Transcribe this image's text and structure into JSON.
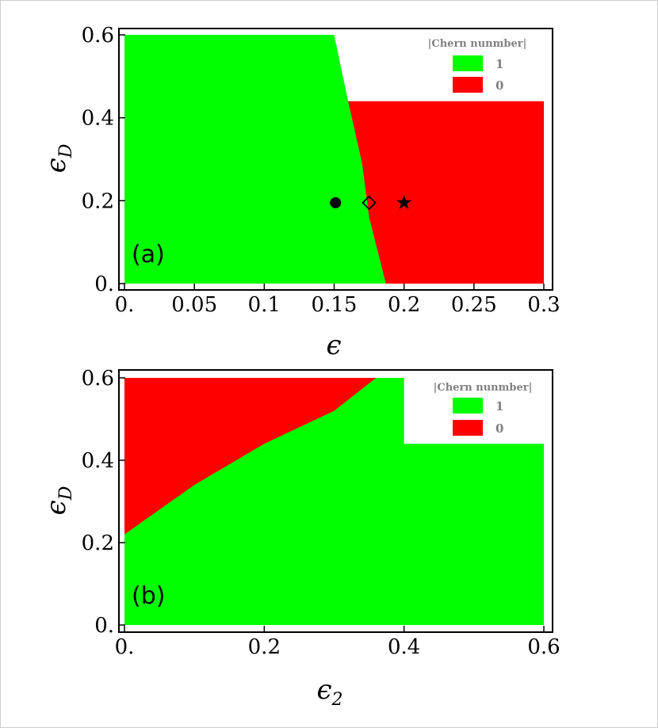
{
  "colors": {
    "phase_one": "#00ff00",
    "phase_zero": "#ff0000",
    "legend_text": "#808080"
  },
  "chart_data": [
    {
      "type": "heatmap",
      "panel_label": "(a)",
      "xlabel": "ϵ",
      "ylabel_base": "ϵ",
      "ylabel_sub": "D",
      "xlim": [
        0,
        0.3
      ],
      "ylim": [
        0,
        0.6
      ],
      "x_ticks": [
        "0.",
        "0.05",
        "0.1",
        "0.15",
        "0.2",
        "0.25",
        "0.3"
      ],
      "x_tick_values": [
        0,
        0.05,
        0.1,
        0.15,
        0.2,
        0.25,
        0.3
      ],
      "y_ticks": [
        "0.",
        "0.2",
        "0.4",
        "0.6"
      ],
      "y_tick_values": [
        0,
        0.2,
        0.4,
        0.6
      ],
      "data_extent": {
        "x_max_upper_part": 0.15,
        "y_break": 0.44,
        "x_max": 0.3
      },
      "phase_boundary": [
        [
          0.15,
          0.6
        ],
        [
          0.16,
          0.44
        ],
        [
          0.17,
          0.29
        ],
        [
          0.175,
          0.16
        ],
        [
          0.187,
          0.0
        ]
      ],
      "regions": [
        {
          "side": "left",
          "chern": 1,
          "color": "#00ff00"
        },
        {
          "side": "right",
          "chern": 0,
          "color": "#ff0000"
        }
      ],
      "legend": {
        "title": "|Chern nunmber|",
        "entries": [
          {
            "label": "1",
            "color": "#00ff00"
          },
          {
            "label": "0",
            "color": "#ff0000"
          }
        ]
      },
      "markers": [
        {
          "symbol": "filled-circle",
          "x": 0.151,
          "y": 0.195
        },
        {
          "symbol": "open-diamond",
          "x": 0.175,
          "y": 0.195
        },
        {
          "symbol": "star",
          "x": 0.2,
          "y": 0.195
        }
      ]
    },
    {
      "type": "heatmap",
      "panel_label": "(b)",
      "xlabel_base": "ϵ",
      "xlabel_sub": "2",
      "ylabel_base": "ϵ",
      "ylabel_sub": "D",
      "xlim": [
        0,
        0.6
      ],
      "ylim": [
        0,
        0.6
      ],
      "x_ticks": [
        "0.",
        "0.2",
        "0.4",
        "0.6"
      ],
      "x_tick_values": [
        0,
        0.2,
        0.4,
        0.6
      ],
      "y_ticks": [
        "0.",
        "0.2",
        "0.4",
        "0.6"
      ],
      "y_tick_values": [
        0,
        0.2,
        0.4,
        0.6
      ],
      "data_extent": {
        "x_max_upper_part": 0.4,
        "y_break": 0.44,
        "x_max": 0.6
      },
      "phase_boundary": [
        [
          0.0,
          0.22
        ],
        [
          0.1,
          0.34
        ],
        [
          0.2,
          0.44
        ],
        [
          0.3,
          0.52
        ],
        [
          0.36,
          0.6
        ]
      ],
      "regions": [
        {
          "side": "upper-left",
          "chern": 0,
          "color": "#ff0000"
        },
        {
          "side": "lower-right",
          "chern": 1,
          "color": "#00ff00"
        }
      ],
      "legend": {
        "title": "|Chern nunmber|",
        "entries": [
          {
            "label": "1",
            "color": "#00ff00"
          },
          {
            "label": "0",
            "color": "#ff0000"
          }
        ]
      }
    }
  ]
}
